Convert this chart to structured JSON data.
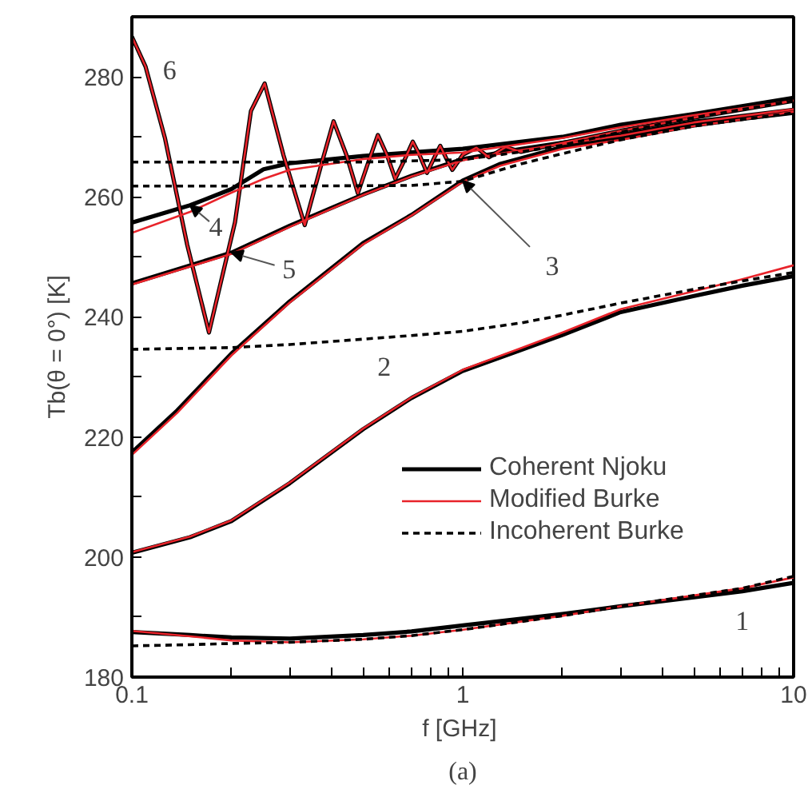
{
  "chart_data": {
    "type": "line",
    "xlabel": "f  [GHz]",
    "ylabel": "Tb(θ = 0°) [K]",
    "log": "x",
    "legend": "bottom right",
    "grid": false,
    "xlim": [
      0.1,
      10
    ],
    "ylim": [
      180,
      290
    ],
    "xticks": [
      0.1,
      {
        "value": 0.2,
        "label": null
      },
      {
        "value": 0.3,
        "label": null
      },
      {
        "value": 0.4,
        "label": null
      },
      {
        "value": 0.5,
        "label": null
      },
      {
        "value": 0.6,
        "label": null
      },
      {
        "value": 0.7,
        "label": null
      },
      {
        "value": 0.8,
        "label": null
      },
      {
        "value": 0.9,
        "label": null
      },
      1,
      {
        "value": 2,
        "label": null
      },
      {
        "value": 3,
        "label": null
      },
      {
        "value": 4,
        "label": null
      },
      {
        "value": 5,
        "label": null
      },
      {
        "value": 6,
        "label": null
      },
      {
        "value": 7,
        "label": null
      },
      {
        "value": 8,
        "label": null
      },
      {
        "value": 9,
        "label": null
      },
      10
    ],
    "yticks": [
      180,
      {
        "value": 190,
        "label": null
      },
      200,
      {
        "value": 210,
        "label": null
      },
      220,
      {
        "value": 230,
        "label": null
      },
      240,
      {
        "value": 250,
        "label": null
      },
      260,
      {
        "value": 270,
        "label": null
      },
      280,
      {
        "value": 290,
        "label": null
      }
    ],
    "series": [
      {
        "name": "Coherent Njoku",
        "color": "#000000",
        "line_style": "solid",
        "x": [
          0.1,
          0.15,
          0.2,
          0.3,
          0.5,
          0.7,
          1,
          2,
          3,
          5,
          7,
          10
        ],
        "values": [
          187.5,
          187,
          186.6,
          186.4,
          187,
          187.6,
          188.6,
          190.5,
          191.8,
          193.3,
          194.3,
          195.7
        ]
      },
      {
        "color": "#000000",
        "line_style": "solid",
        "x": [
          0.1,
          0.15,
          0.2,
          0.3,
          0.5,
          0.7,
          1,
          1.5,
          2,
          3,
          5,
          7,
          10
        ],
        "values": [
          200.7,
          203.3,
          206,
          212.3,
          221.3,
          226.5,
          231,
          234.5,
          237,
          240.8,
          243.5,
          245.2,
          246.8
        ]
      },
      {
        "color": "#000000",
        "line_style": "solid",
        "x": [
          0.1,
          0.137,
          0.2,
          0.3,
          0.5,
          0.7,
          1,
          1.3,
          2,
          3,
          5,
          7,
          10
        ],
        "values": [
          217.4,
          224.4,
          233.9,
          242.6,
          252.3,
          257,
          262.7,
          265.5,
          268.3,
          269.7,
          271.9,
          273,
          274
        ]
      },
      {
        "color": "#000000",
        "line_style": "solid",
        "x": [
          0.1,
          0.15,
          0.2,
          0.25,
          0.3,
          0.5,
          0.7,
          1,
          2,
          3,
          5,
          10
        ],
        "values": [
          255.7,
          258.6,
          261.3,
          264.6,
          265.6,
          266.8,
          267.4,
          268,
          270,
          272,
          273.8,
          276.5
        ]
      },
      {
        "color": "#000000",
        "line_style": "solid",
        "x": [
          0.1,
          0.2,
          0.3,
          0.5,
          0.7,
          1,
          1.5,
          2,
          3,
          5,
          10
        ],
        "values": [
          245.6,
          250.7,
          255.2,
          260.4,
          263.5,
          266.3,
          268,
          269,
          270.3,
          272.5,
          274.5
        ]
      },
      {
        "color": "#000000",
        "line_style": "solid",
        "x": [
          0.1,
          0.11,
          0.126,
          0.147,
          0.171,
          0.205,
          0.229,
          0.252,
          0.287,
          0.333,
          0.372,
          0.407,
          0.445,
          0.482,
          0.52,
          0.554,
          0.59,
          0.625,
          0.665,
          0.706,
          0.74,
          0.78,
          0.82,
          0.855,
          0.89,
          0.93,
          1.0,
          1.1,
          1.2,
          1.35,
          1.5,
          2,
          3,
          5,
          10
        ],
        "values": [
          286.7,
          281.7,
          269.7,
          252,
          237.4,
          255.8,
          274.3,
          278.9,
          267,
          255.3,
          265,
          272.6,
          267,
          260.6,
          266,
          270.3,
          267,
          263,
          266,
          269.2,
          267,
          264,
          266.5,
          268.5,
          266.5,
          264.5,
          267,
          268.2,
          266.6,
          268.3,
          267.5,
          269,
          271,
          273.2,
          276
        ]
      },
      {
        "name": "Modified Burke",
        "color": "#e8232a",
        "line_style": "solid",
        "x": [
          0.1,
          0.15,
          0.2,
          0.3,
          0.5,
          0.7,
          1,
          2,
          3,
          5,
          7,
          10
        ],
        "values": [
          187.7,
          186.8,
          186.1,
          185.8,
          186.3,
          186.9,
          187.9,
          190.2,
          191.8,
          193.6,
          194.8,
          196.6
        ]
      },
      {
        "color": "#e8232a",
        "line_style": "solid",
        "x": [
          0.1,
          0.15,
          0.2,
          0.3,
          0.5,
          0.7,
          1,
          1.5,
          2,
          3,
          5,
          7,
          10
        ],
        "values": [
          200.8,
          203.4,
          206.1,
          212.4,
          221.4,
          226.6,
          231.2,
          234.8,
          237.4,
          241.3,
          244.3,
          246.3,
          248.6
        ]
      },
      {
        "color": "#e8232a",
        "line_style": "solid",
        "x": [
          0.1,
          0.137,
          0.2,
          0.3,
          0.5,
          0.7,
          1,
          1.3,
          2,
          3,
          5,
          7,
          10
        ],
        "values": [
          217,
          224,
          233.6,
          242.4,
          252.1,
          256.9,
          262.5,
          265.2,
          268,
          269.5,
          271.8,
          272.9,
          274.2
        ]
      },
      {
        "color": "#e8232a",
        "line_style": "solid",
        "x": [
          0.1,
          0.15,
          0.2,
          0.25,
          0.3,
          0.5,
          0.7,
          1,
          2,
          3,
          5,
          10
        ],
        "values": [
          254,
          257.5,
          260.7,
          263,
          264.5,
          266.3,
          267,
          267.4,
          269.8,
          271.6,
          273.6,
          276
        ]
      },
      {
        "color": "#e8232a",
        "line_style": "solid",
        "x": [
          0.1,
          0.2,
          0.3,
          0.5,
          0.7,
          1,
          1.5,
          2,
          3,
          5,
          10
        ],
        "values": [
          245.4,
          250.5,
          255,
          260.3,
          263.4,
          266.1,
          267.8,
          268.8,
          270.2,
          272.4,
          274.6
        ]
      },
      {
        "color": "#e8232a",
        "line_style": "solid",
        "x": [
          0.1,
          0.11,
          0.126,
          0.147,
          0.171,
          0.205,
          0.229,
          0.252,
          0.287,
          0.333,
          0.372,
          0.407,
          0.445,
          0.482,
          0.52,
          0.554,
          0.59,
          0.625,
          0.665,
          0.706,
          0.74,
          0.78,
          0.82,
          0.855,
          0.89,
          0.93,
          1.0,
          1.1,
          1.2,
          1.35,
          1.5,
          2,
          3,
          5,
          10
        ],
        "values": [
          286.7,
          281.7,
          269.7,
          252,
          237.4,
          255.8,
          274.3,
          278.9,
          267,
          255.3,
          265,
          272.6,
          267,
          260.6,
          266,
          270.3,
          267,
          263,
          266,
          269.2,
          267,
          264,
          266.5,
          268.5,
          266.5,
          264.5,
          267,
          268.2,
          266.6,
          268.3,
          267.5,
          269,
          271,
          273.2,
          276
        ]
      },
      {
        "name": "Incoherent Burke",
        "color": "#000000",
        "line_style": "dashed",
        "x": [
          0.1,
          0.15,
          0.2,
          0.3,
          0.5,
          0.7,
          1,
          2,
          3,
          5,
          7,
          10
        ],
        "values": [
          185.2,
          185.4,
          185.6,
          185.8,
          186.3,
          186.9,
          187.9,
          190.2,
          191.8,
          193.6,
          194.8,
          196.8
        ]
      },
      {
        "color": "#000000",
        "line_style": "dashed",
        "x": [
          0.1,
          0.2,
          0.3,
          0.5,
          0.7,
          1,
          1.5,
          2,
          3,
          5,
          7,
          10
        ],
        "values": [
          234.6,
          234.9,
          235.4,
          236.3,
          236.9,
          237.6,
          239,
          240.3,
          242.3,
          244.6,
          246,
          247.4
        ]
      },
      {
        "color": "#000000",
        "line_style": "dashed",
        "x": [
          0.1,
          0.3,
          0.7,
          1,
          1.5,
          2,
          3,
          5,
          10
        ],
        "values": [
          261.8,
          261.8,
          261.9,
          262.6,
          265.5,
          267.2,
          269.5,
          271.8,
          274
        ]
      },
      {
        "color": "#000000",
        "line_style": "dashed",
        "x": [
          0.1,
          0.5,
          1,
          1.5,
          2,
          3,
          5,
          10
        ],
        "values": [
          265.8,
          265.8,
          266.2,
          267.5,
          268.6,
          270.8,
          273.2,
          276
        ]
      }
    ],
    "annotations": [
      {
        "text": "1",
        "x": 7,
        "y": 194.3
      },
      {
        "text": "2",
        "x": 0.7,
        "y": 226.5
      },
      {
        "text": "3",
        "x": 1,
        "y": 262.7
      },
      {
        "text": "4",
        "x": 0.15,
        "y": 258.6
      },
      {
        "text": "5",
        "x": 0.2,
        "y": 250.7
      },
      {
        "text": "6",
        "x": 0.11,
        "y": 281.7
      },
      "(a)"
    ]
  }
}
